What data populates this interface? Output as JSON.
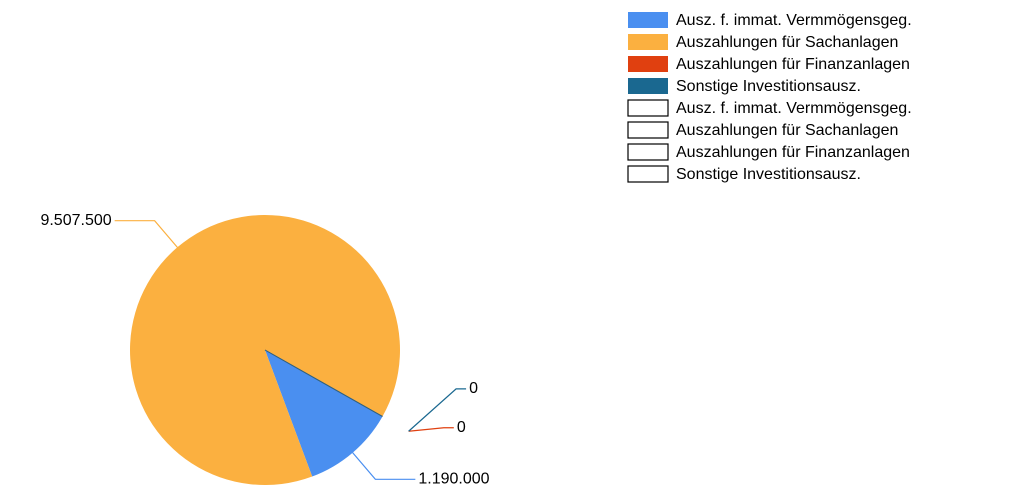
{
  "chart_data": {
    "type": "pie",
    "categories": [
      "Ausz. f. immat. Vermmögensgeg.",
      "Auszahlungen für Sachanlagen",
      "Auszahlungen für Finanzanlagen",
      "Sonstige Investitionsausz."
    ],
    "series": [
      {
        "colors": [
          "#4a8ff0",
          "#fbb040",
          "#e04010",
          "#1a6890"
        ],
        "values": [
          1190000,
          9507500,
          0,
          0
        ],
        "value_labels": [
          "1.190.000",
          "9.507.500",
          "0",
          "0"
        ]
      },
      {
        "colors": [
          "#ffffff",
          "#ffffff",
          "#ffffff",
          "#ffffff"
        ],
        "values": [
          null,
          null,
          null,
          null
        ]
      }
    ]
  }
}
